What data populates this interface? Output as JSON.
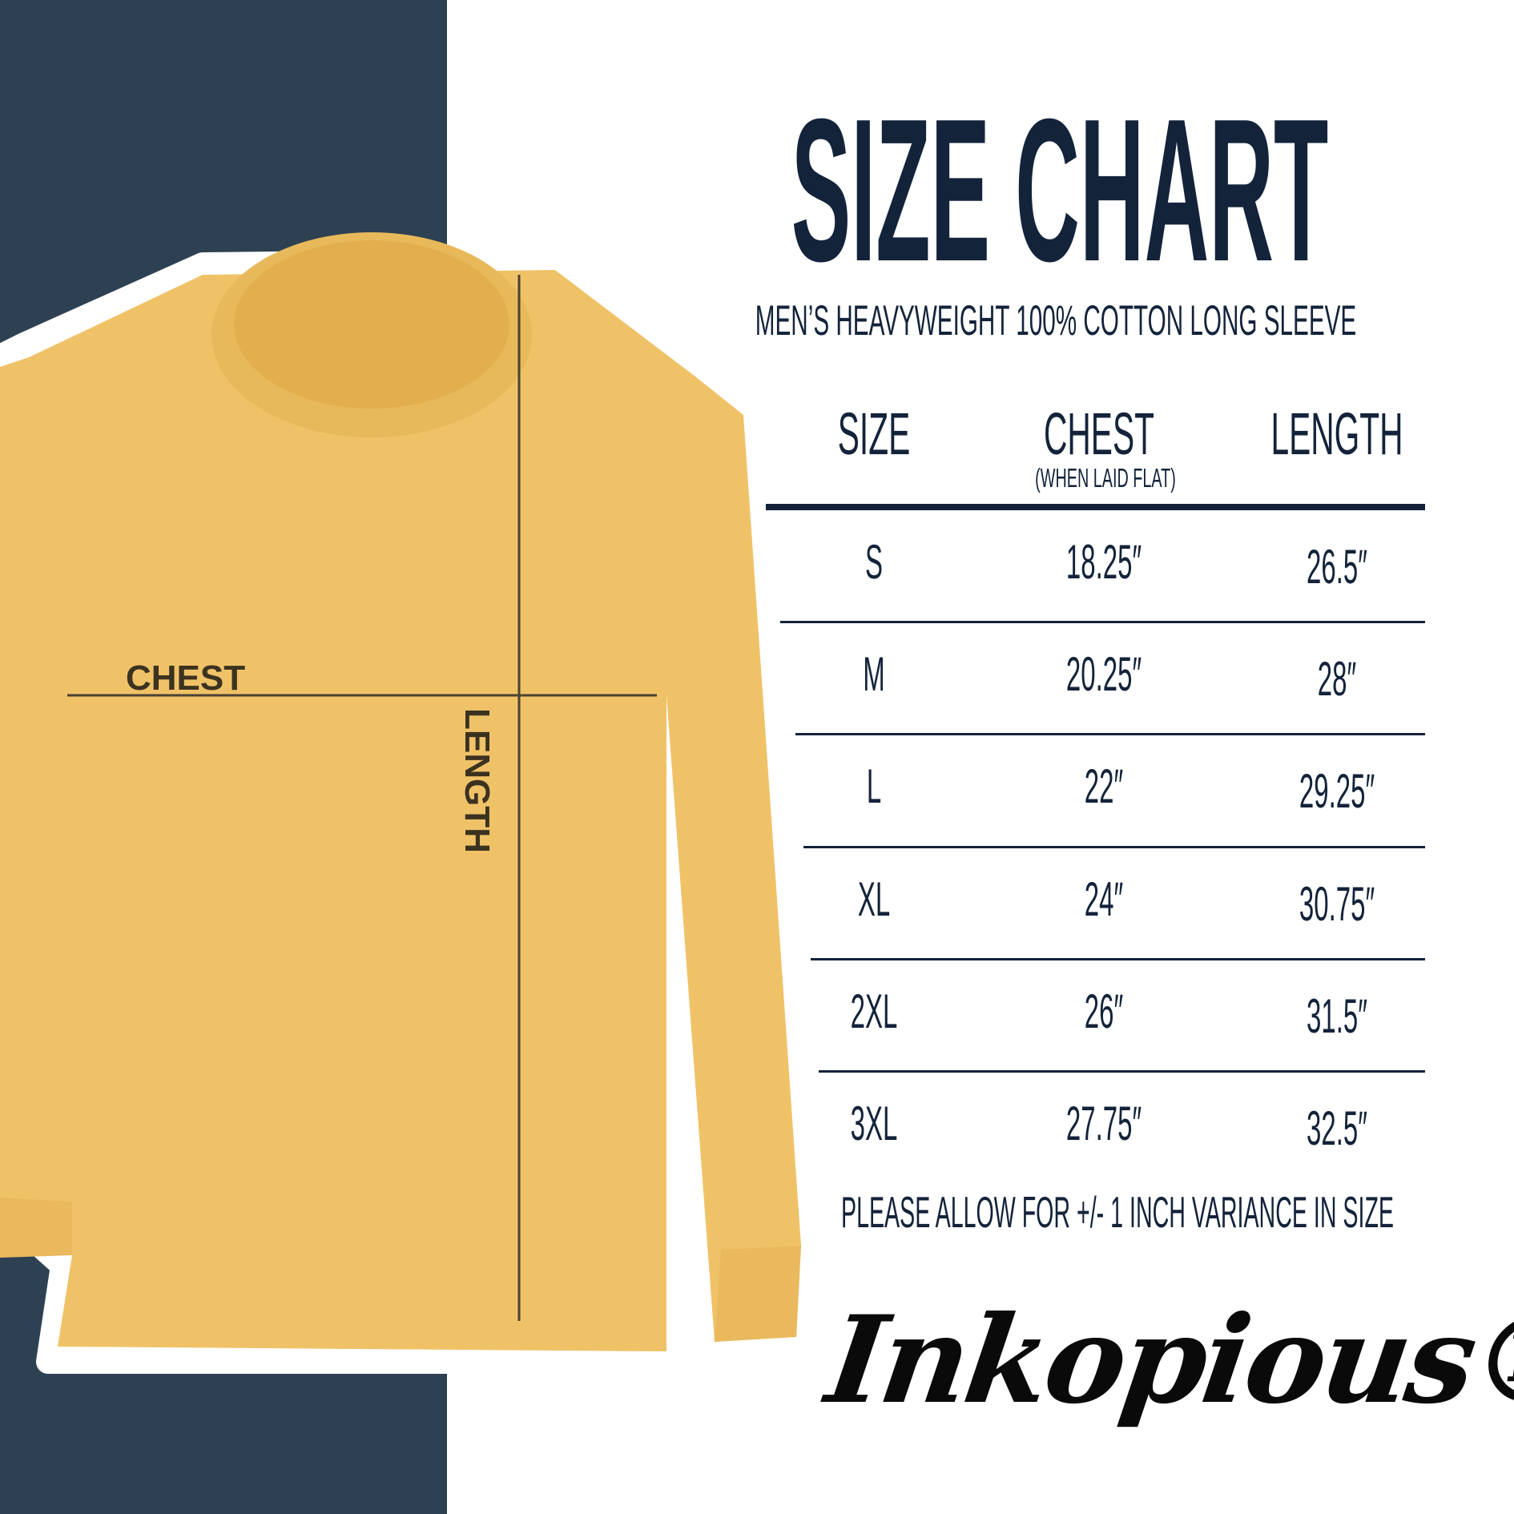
{
  "colors": {
    "panel": "#2e4153",
    "text": "#13233a",
    "shirt": "#f0c268"
  },
  "title": "SIZE CHART",
  "subtitle": "MEN’S HEAVYWEIGHT 100% COTTON LONG SLEEVE",
  "diagram": {
    "chest_label": "CHEST",
    "length_label": "LENGTH"
  },
  "table": {
    "headers": {
      "size": "SIZE",
      "chest": "CHEST",
      "chest_note": "(WHEN LAID FLAT)",
      "length": "LENGTH"
    },
    "rows": [
      {
        "size": "S",
        "chest": "18.25″",
        "length": "26.5″"
      },
      {
        "size": "M",
        "chest": "20.25″",
        "length": "28″"
      },
      {
        "size": "L",
        "chest": "22″",
        "length": "29.25″"
      },
      {
        "size": "XL",
        "chest": "24″",
        "length": "30.75″"
      },
      {
        "size": "2XL",
        "chest": "26″",
        "length": "31.5″"
      },
      {
        "size": "3XL",
        "chest": "27.75″",
        "length": "32.5″"
      }
    ]
  },
  "note": "PLEASE ALLOW FOR +/- 1 INCH VARIANCE IN SIZE",
  "logo": "Inkopious®"
}
